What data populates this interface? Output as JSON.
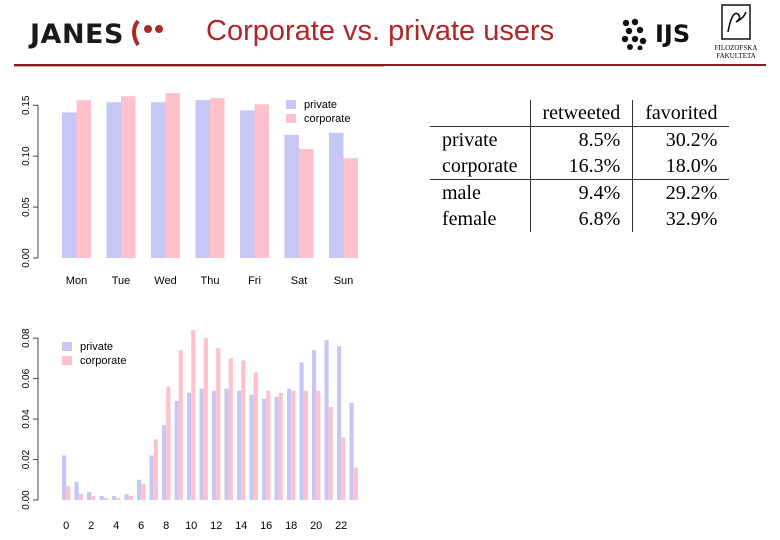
{
  "header": {
    "title": "Corporate vs. private users",
    "logo_left": "JANES",
    "logo_right": "IJS",
    "logo_ff_line1": "FILOZOFSKA",
    "logo_ff_line2": "FAKULTETA"
  },
  "colors": {
    "private": "#c7c7f5",
    "corporate": "#ffc2cc",
    "title": "#b02626",
    "rule": "#8a1c1c"
  },
  "chart_data": [
    {
      "type": "bar",
      "categories": [
        "Mon",
        "Tue",
        "Wed",
        "Thu",
        "Fri",
        "Sat",
        "Sun"
      ],
      "series": [
        {
          "name": "private",
          "values": [
            0.143,
            0.153,
            0.153,
            0.155,
            0.145,
            0.121,
            0.123
          ]
        },
        {
          "name": "corporate",
          "values": [
            0.155,
            0.159,
            0.162,
            0.157,
            0.151,
            0.107,
            0.098
          ]
        }
      ],
      "ylim": [
        0,
        0.165
      ],
      "yticks": [
        "0.00",
        "0.05",
        "0.10",
        "0.15"
      ],
      "ytick_values": [
        0,
        0.05,
        0.1,
        0.15
      ],
      "legend": "top-right",
      "grid": false
    },
    {
      "type": "bar",
      "categories": [
        "0",
        "1",
        "2",
        "3",
        "4",
        "5",
        "6",
        "7",
        "8",
        "9",
        "10",
        "11",
        "12",
        "13",
        "14",
        "15",
        "16",
        "17",
        "18",
        "19",
        "20",
        "21",
        "22",
        "23"
      ],
      "xtick_labels": [
        "0",
        "2",
        "4",
        "6",
        "8",
        "10",
        "12",
        "14",
        "16",
        "18",
        "20",
        "22"
      ],
      "series": [
        {
          "name": "private",
          "values": [
            0.022,
            0.009,
            0.004,
            0.002,
            0.002,
            0.003,
            0.01,
            0.022,
            0.037,
            0.049,
            0.053,
            0.055,
            0.054,
            0.055,
            0.054,
            0.052,
            0.05,
            0.051,
            0.055,
            0.068,
            0.074,
            0.079,
            0.076,
            0.048
          ]
        },
        {
          "name": "corporate",
          "values": [
            0.007,
            0.003,
            0.002,
            0.001,
            0.001,
            0.002,
            0.008,
            0.03,
            0.056,
            0.074,
            0.084,
            0.08,
            0.075,
            0.07,
            0.069,
            0.063,
            0.054,
            0.053,
            0.054,
            0.054,
            0.054,
            0.046,
            0.031,
            0.016
          ]
        }
      ],
      "ylim": [
        0,
        0.085
      ],
      "yticks": [
        "0.00",
        "0.02",
        "0.04",
        "0.06",
        "0.08"
      ],
      "ytick_values": [
        0,
        0.02,
        0.04,
        0.06,
        0.08
      ],
      "legend": "top-left",
      "grid": false
    },
    {
      "type": "table",
      "columns": [
        "",
        "retweeted",
        "favorited"
      ],
      "rows": [
        [
          "private",
          "8.5%",
          "30.2%"
        ],
        [
          "corporate",
          "16.3%",
          "18.0%"
        ],
        [
          "male",
          "9.4%",
          "29.2%"
        ],
        [
          "female",
          "6.8%",
          "32.9%"
        ]
      ]
    }
  ]
}
